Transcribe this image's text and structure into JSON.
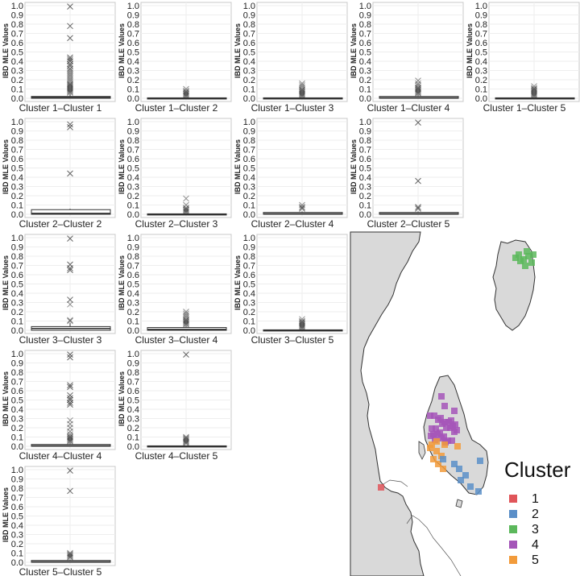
{
  "colors": {
    "panel_bg": "#ffffff",
    "panel_border": "#c8c8c8",
    "grid": "#eeeeee",
    "box": "#333333",
    "outlier": "#333333",
    "land": "#d9d9d9",
    "coast": "#333333",
    "sea": "#ffffff"
  },
  "chart_data": {
    "type": "box",
    "ylabel": "IBD MLE Values",
    "ylim": [
      0,
      1.0
    ],
    "yticks": [
      "0.0",
      "0.1",
      "0.2",
      "0.3",
      "0.4",
      "0.5",
      "0.6",
      "0.7",
      "0.8",
      "0.9",
      "1.0"
    ],
    "grid": true,
    "panels": [
      {
        "row": 0,
        "col": 0,
        "label": "Cluster 1–Cluster 1",
        "q1": 0,
        "median": 0.01,
        "q3": 0.02,
        "whisker": 0.05,
        "outliers": [
          0.99,
          0.78,
          0.65,
          0.44,
          0.42,
          0.4,
          0.37,
          0.35,
          0.32,
          0.3,
          0.28,
          0.26,
          0.24,
          0.22,
          0.2,
          0.18,
          0.16,
          0.15,
          0.14,
          0.13,
          0.12,
          0.11,
          0.1,
          0.09,
          0.08,
          0.07,
          0.06
        ]
      },
      {
        "row": 0,
        "col": 1,
        "label": "Cluster 1–Cluster 2",
        "q1": 0,
        "median": 0,
        "q3": 0.005,
        "whisker": 0.01,
        "outliers": [
          0.1,
          0.08,
          0.07,
          0.06,
          0.05,
          0.04,
          0.03,
          0.02
        ]
      },
      {
        "row": 0,
        "col": 2,
        "label": "Cluster 1–Cluster 3",
        "q1": 0,
        "median": 0,
        "q3": 0.005,
        "whisker": 0.01,
        "outliers": [
          0.16,
          0.14,
          0.12,
          0.1,
          0.09,
          0.08,
          0.07,
          0.06,
          0.05,
          0.04,
          0.03,
          0.02
        ]
      },
      {
        "row": 0,
        "col": 3,
        "label": "Cluster 1–Cluster 4",
        "q1": 0,
        "median": 0.005,
        "q3": 0.02,
        "whisker": 0.04,
        "outliers": [
          0.19,
          0.16,
          0.14,
          0.12,
          0.11,
          0.1,
          0.09,
          0.08,
          0.07,
          0.06,
          0.05
        ]
      },
      {
        "row": 0,
        "col": 4,
        "label": "Cluster 1–Cluster 5",
        "q1": 0,
        "median": 0,
        "q3": 0.005,
        "whisker": 0.01,
        "outliers": [
          0.13,
          0.11,
          0.1,
          0.09,
          0.08,
          0.07,
          0.06,
          0.05,
          0.04,
          0.03,
          0.02
        ]
      },
      {
        "row": 1,
        "col": 0,
        "label": "Cluster 2–Cluster 2",
        "q1": 0,
        "median": 0.01,
        "q3": 0.05,
        "whisker": 0.06,
        "outliers": [
          0.97,
          0.94,
          0.44
        ]
      },
      {
        "row": 1,
        "col": 1,
        "label": "Cluster 2–Cluster 3",
        "q1": 0,
        "median": 0,
        "q3": 0.005,
        "whisker": 0.01,
        "outliers": [
          0.17,
          0.1,
          0.07,
          0.06,
          0.05,
          0.04,
          0.03,
          0.02
        ]
      },
      {
        "row": 1,
        "col": 2,
        "label": "Cluster 2–Cluster 4",
        "q1": 0,
        "median": 0.005,
        "q3": 0.02,
        "whisker": 0.03,
        "outliers": [
          0.1,
          0.08,
          0.07,
          0.06
        ]
      },
      {
        "row": 1,
        "col": 3,
        "label": "Cluster 2–Cluster 5",
        "q1": 0,
        "median": 0.005,
        "q3": 0.02,
        "whisker": 0.03,
        "outliers": [
          0.99,
          0.36,
          0.08,
          0.07,
          0.06
        ]
      },
      {
        "row": 2,
        "col": 0,
        "label": "Cluster 3–Cluster 3",
        "q1": 0,
        "median": 0.02,
        "q3": 0.04,
        "whisker": 0.08,
        "outliers": [
          0.99,
          0.71,
          0.67,
          0.65,
          0.33,
          0.28,
          0.11,
          0.1
        ]
      },
      {
        "row": 2,
        "col": 1,
        "label": "Cluster 3–Cluster 4",
        "q1": 0,
        "median": 0.01,
        "q3": 0.03,
        "whisker": 0.05,
        "outliers": [
          0.2,
          0.18,
          0.16,
          0.14,
          0.12,
          0.11,
          0.1,
          0.09,
          0.08,
          0.07,
          0.06
        ]
      },
      {
        "row": 2,
        "col": 2,
        "label": "Cluster 3–Cluster 5",
        "q1": 0,
        "median": 0,
        "q3": 0.005,
        "whisker": 0.01,
        "outliers": [
          0.12,
          0.1,
          0.09,
          0.08,
          0.07,
          0.06,
          0.05,
          0.04,
          0.03,
          0.02
        ]
      },
      {
        "row": 3,
        "col": 0,
        "label": "Cluster 4–Cluster 4",
        "q1": 0,
        "median": 0.005,
        "q3": 0.02,
        "whisker": 0.04,
        "outliers": [
          0.99,
          0.96,
          0.66,
          0.64,
          0.55,
          0.52,
          0.5,
          0.47,
          0.45,
          0.28,
          0.24,
          0.2,
          0.16,
          0.13,
          0.11,
          0.1,
          0.09,
          0.08,
          0.07,
          0.06,
          0.05
        ]
      },
      {
        "row": 3,
        "col": 1,
        "label": "Cluster 4–Cluster 5",
        "q1": 0,
        "median": 0,
        "q3": 0.005,
        "whisker": 0.01,
        "outliers": [
          0.99,
          0.1,
          0.09,
          0.08,
          0.07,
          0.06,
          0.05,
          0.04,
          0.03
        ]
      },
      {
        "row": 4,
        "col": 0,
        "label": "Cluster 5–Cluster 5",
        "q1": 0,
        "median": 0.005,
        "q3": 0.02,
        "whisker": 0.03,
        "outliers": [
          0.99,
          0.77,
          0.1,
          0.09,
          0.08,
          0.07,
          0.06,
          0.05
        ]
      }
    ]
  },
  "map": {
    "legend_title": "Cluster",
    "legend_items": [
      {
        "label": "1",
        "color": "#e0555a"
      },
      {
        "label": "2",
        "color": "#5b8fc8"
      },
      {
        "label": "3",
        "color": "#5cb85c"
      },
      {
        "label": "4",
        "color": "#a455b8"
      },
      {
        "label": "5",
        "color": "#f29b3b"
      }
    ]
  }
}
